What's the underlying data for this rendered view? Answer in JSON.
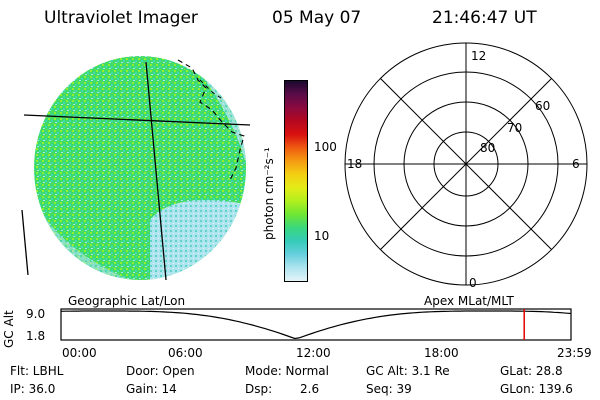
{
  "header": {
    "title": "Ultraviolet Imager",
    "date": "05 May 07",
    "time": "21:46:47 UT"
  },
  "colorbar": {
    "unit_label": "photon cm⁻²s⁻¹",
    "ticks": [
      "100",
      "10"
    ],
    "colors": [
      "#1a0a2e",
      "#5a0c48",
      "#8a0a40",
      "#b5081f",
      "#d81010",
      "#ef5a10",
      "#f59a12",
      "#f3cf12",
      "#e3ec18",
      "#b2ef1e",
      "#6fe632",
      "#3ad77d",
      "#35cbb8",
      "#66cfdd",
      "#aee4ef",
      "#e3f4f8"
    ]
  },
  "polar_grid": {
    "mlt_labels": [
      "12",
      "18",
      "6",
      "0"
    ],
    "mlat_labels": [
      "60",
      "70",
      "80"
    ]
  },
  "map_labels": {
    "left": "Geographic Lat/Lon",
    "right": "Apex MLat/MLT"
  },
  "altitude_plot": {
    "ylabel": "GC Alt",
    "yticks": [
      "9.0",
      "1.8"
    ],
    "xticks": [
      "00:00",
      "06:00",
      "12:00",
      "18:00",
      "23:59"
    ],
    "current_time_hours": 21.78,
    "marker_color": "#e00000"
  },
  "info": {
    "filter": "Flt: LBHL",
    "door": "Door: Open",
    "mode": "Mode: Normal",
    "gc_alt": "GC Alt: 3.1 Re",
    "glat": "GLat:  28.8",
    "ip": "IP: 36.0",
    "gain": "Gain: 14",
    "dsp_label": "Dsp:",
    "dsp_value": "2.6",
    "seq": "Seq: 39",
    "glon": "GLon: 139.6"
  }
}
